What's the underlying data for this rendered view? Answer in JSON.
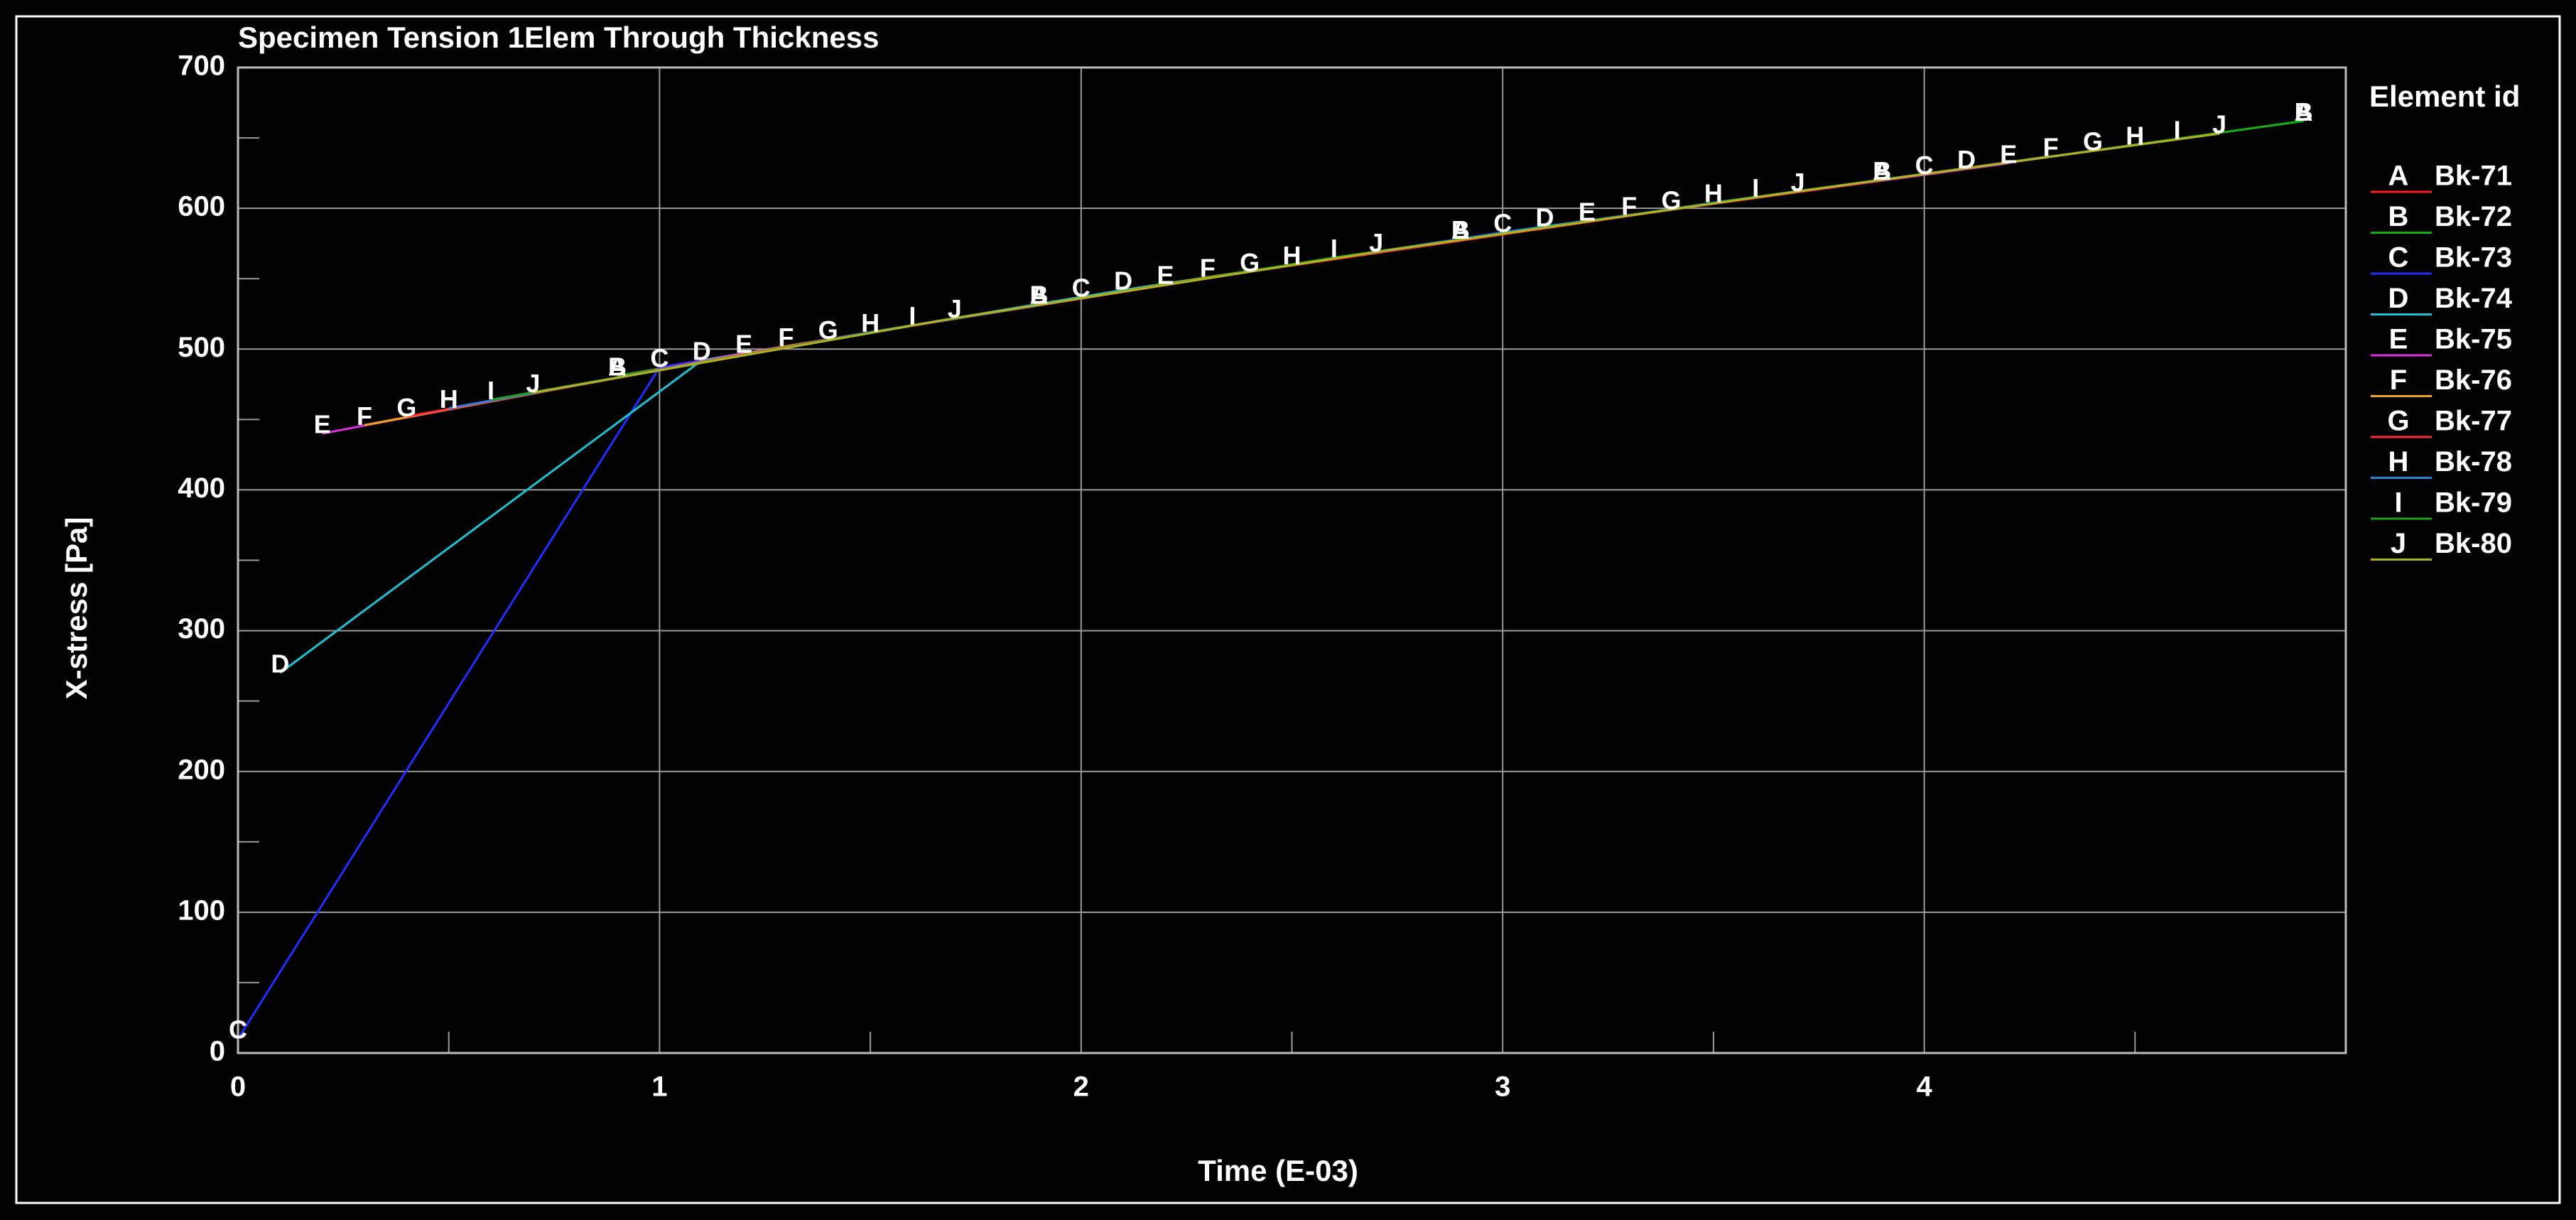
{
  "chart_data": {
    "type": "line",
    "title": "Specimen Tension 1Elem Through Thickness",
    "x_label": "Time (E-03)",
    "y_label": "X-stress [Pa]",
    "legend_title": "Element id",
    "xlim": [
      0,
      5.0
    ],
    "ylim": [
      0,
      700
    ],
    "xticks": [
      0,
      1,
      2,
      3,
      4
    ],
    "xminorticks": [
      0.5,
      1.5,
      2.5,
      3.5,
      4.5
    ],
    "yticks": [
      0,
      100,
      200,
      300,
      400,
      500,
      600,
      700
    ],
    "yminorticks": [
      50,
      150,
      250,
      350,
      450,
      550,
      650
    ],
    "grid": true,
    "series": [
      {
        "name": "Bk-71",
        "label": "A",
        "color": "#ff2020",
        "x": [
          0.9,
          1.9,
          2.9,
          3.9,
          4.9
        ],
        "values": [
          481,
          532,
          578,
          620,
          662
        ]
      },
      {
        "name": "Bk-72",
        "label": "B",
        "color": "#10b010",
        "x": [
          0.9,
          1.9,
          2.9,
          3.9,
          4.9
        ],
        "values": [
          481,
          532,
          578,
          620,
          662
        ]
      },
      {
        "name": "Bk-73",
        "label": "C",
        "color": "#2030ff",
        "x": [
          0,
          1.0,
          2.0,
          3.0,
          4.0
        ],
        "values": [
          10,
          487,
          537,
          583,
          624
        ]
      },
      {
        "name": "Bk-74",
        "label": "D",
        "color": "#20c0d0",
        "x": [
          0.1,
          1.1,
          2.1,
          3.1,
          4.1
        ],
        "values": [
          270,
          492,
          542,
          587,
          628
        ]
      },
      {
        "name": "Bk-75",
        "label": "E",
        "color": "#e030e0",
        "x": [
          0.2,
          1.2,
          2.2,
          3.2,
          4.2
        ],
        "values": [
          440,
          497,
          546,
          591,
          632
        ]
      },
      {
        "name": "Bk-76",
        "label": "F",
        "color": "#f0a020",
        "x": [
          0.3,
          1.3,
          2.3,
          3.3,
          4.3
        ],
        "values": [
          446,
          502,
          551,
          595,
          637
        ]
      },
      {
        "name": "Bk-77",
        "label": "G",
        "color": "#ff3030",
        "x": [
          0.4,
          1.4,
          2.4,
          3.4,
          4.4
        ],
        "values": [
          452,
          507,
          555,
          599,
          641
        ]
      },
      {
        "name": "Bk-78",
        "label": "H",
        "color": "#3080e0",
        "x": [
          0.5,
          1.5,
          2.5,
          3.5,
          4.5
        ],
        "values": [
          458,
          512,
          560,
          604,
          645
        ]
      },
      {
        "name": "Bk-79",
        "label": "I",
        "color": "#20a020",
        "x": [
          0.6,
          1.6,
          2.6,
          3.6,
          4.6
        ],
        "values": [
          464,
          517,
          565,
          608,
          649
        ]
      },
      {
        "name": "Bk-80",
        "label": "J",
        "color": "#b0b020",
        "x": [
          0.7,
          1.7,
          2.7,
          3.7,
          4.7
        ],
        "values": [
          469,
          522,
          569,
          612,
          653
        ]
      }
    ]
  }
}
